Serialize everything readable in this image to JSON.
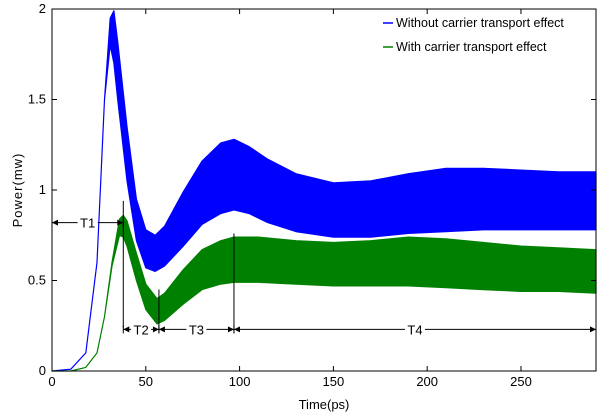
{
  "chart_data": {
    "type": "area",
    "title": "",
    "xlabel": "Time(ps)",
    "ylabel": "Power(mw)",
    "xlim": [
      0,
      290
    ],
    "ylim": [
      0,
      2
    ],
    "xticks": [
      0,
      50,
      100,
      150,
      200,
      250
    ],
    "yticks": [
      0,
      0.5,
      1,
      1.5,
      2
    ],
    "xtick_labels": [
      "0",
      "50",
      "100",
      "150",
      "200",
      "250"
    ],
    "ytick_labels": [
      "0",
      "0.5",
      "1",
      "1.5",
      "2"
    ],
    "grid": false,
    "legend_position": "top-right",
    "series": [
      {
        "name": "Without carrier transport effect",
        "color": "#0000ff",
        "x": [
          0,
          10,
          18,
          24,
          28,
          31,
          33,
          35,
          40,
          45,
          50,
          55,
          60,
          70,
          80,
          90,
          97,
          105,
          115,
          130,
          150,
          170,
          190,
          210,
          230,
          250,
          270,
          290
        ],
        "upper": [
          0,
          0.01,
          0.1,
          0.6,
          1.5,
          1.95,
          1.99,
          1.82,
          1.35,
          0.95,
          0.78,
          0.75,
          0.8,
          0.99,
          1.16,
          1.26,
          1.28,
          1.24,
          1.17,
          1.09,
          1.04,
          1.05,
          1.09,
          1.12,
          1.12,
          1.11,
          1.1,
          1.1
        ],
        "lower": [
          0,
          0.01,
          0.1,
          0.6,
          1.5,
          1.8,
          1.7,
          1.5,
          1.05,
          0.72,
          0.57,
          0.55,
          0.58,
          0.69,
          0.81,
          0.87,
          0.89,
          0.87,
          0.82,
          0.77,
          0.74,
          0.74,
          0.76,
          0.77,
          0.78,
          0.78,
          0.78,
          0.78
        ]
      },
      {
        "name": "With carrier transport effect",
        "color": "#008000",
        "x": [
          0,
          10,
          18,
          24,
          28,
          32,
          36,
          38,
          40,
          45,
          50,
          56,
          60,
          70,
          80,
          90,
          97,
          110,
          130,
          150,
          170,
          190,
          210,
          230,
          250,
          270,
          290
        ],
        "upper": [
          0,
          0.0,
          0.02,
          0.1,
          0.3,
          0.6,
          0.84,
          0.86,
          0.83,
          0.65,
          0.48,
          0.4,
          0.43,
          0.56,
          0.67,
          0.72,
          0.74,
          0.74,
          0.72,
          0.71,
          0.72,
          0.74,
          0.73,
          0.71,
          0.69,
          0.68,
          0.67
        ],
        "lower": [
          0,
          0.0,
          0.02,
          0.1,
          0.3,
          0.58,
          0.75,
          0.74,
          0.69,
          0.5,
          0.34,
          0.26,
          0.28,
          0.37,
          0.45,
          0.48,
          0.49,
          0.49,
          0.48,
          0.47,
          0.47,
          0.47,
          0.46,
          0.45,
          0.44,
          0.44,
          0.43
        ]
      }
    ],
    "annotations": [
      {
        "label": "T1",
        "x_start": 0,
        "x_end": 38,
        "y": 0.82
      },
      {
        "label": "T2",
        "x_start": 38,
        "x_end": 57,
        "y": 0.23
      },
      {
        "label": "T3",
        "x_start": 57,
        "x_end": 97,
        "y": 0.23
      },
      {
        "label": "T4",
        "x_start": 97,
        "x_end": 290,
        "y": 0.23
      }
    ],
    "markers": [
      {
        "x": 38,
        "y_from": 0.24,
        "y_to": 0.94
      },
      {
        "x": 57,
        "y_from": 0.22,
        "y_to": 0.45
      },
      {
        "x": 97,
        "y_from": 0.22,
        "y_to": 0.76
      }
    ]
  }
}
